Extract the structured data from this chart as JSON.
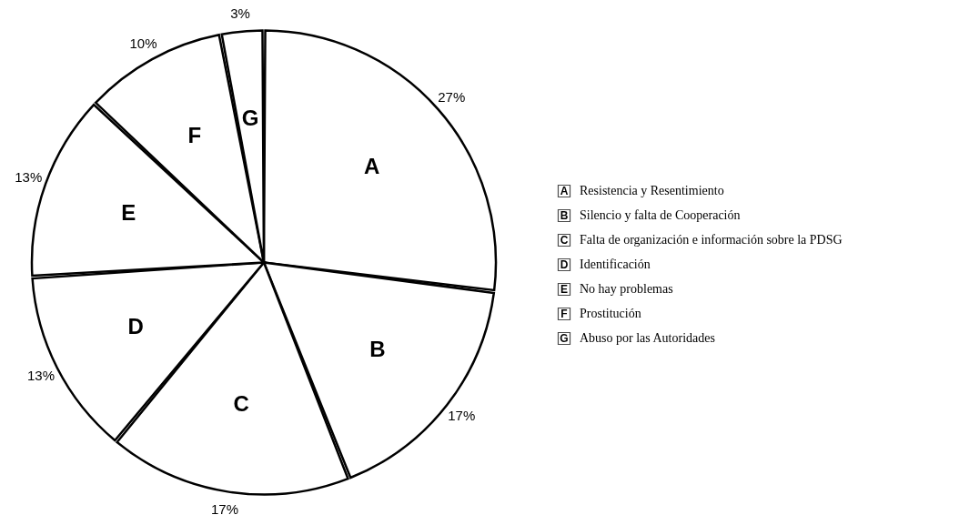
{
  "chart_data": {
    "type": "pie",
    "categories": [
      "Resistencia y Resentimiento",
      "Silencio y falta de Cooperación",
      "Falta de organización e información sobre la PDSG",
      "Identificación",
      "No hay problemas",
      "Prostitución",
      "Abuso por las Autoridades"
    ],
    "values": [
      27,
      17,
      17,
      13,
      13,
      10,
      3
    ],
    "colors": [
      "#ffffff",
      "#ffffff",
      "#ffffff",
      "#ffffff",
      "#ffffff",
      "#ffffff",
      "#ffffff"
    ],
    "value_labels": [
      "27%",
      "17%",
      "17%",
      "13%",
      "13%",
      "10%",
      "3%"
    ],
    "annotations": [
      {
        "text": "A",
        "x": "Resistencia y Resentimiento"
      },
      {
        "text": "B",
        "x": "Silencio y falta de Cooperación"
      },
      {
        "text": "C",
        "x": "Falta de organización e información sobre la PDSG"
      },
      {
        "text": "D",
        "x": "Identificación"
      },
      {
        "text": "E",
        "x": "No hay problemas"
      },
      {
        "text": "F",
        "x": "Prostitución"
      },
      {
        "text": "G",
        "x": "Abuso por las Autoridades"
      }
    ],
    "legend": "right"
  }
}
